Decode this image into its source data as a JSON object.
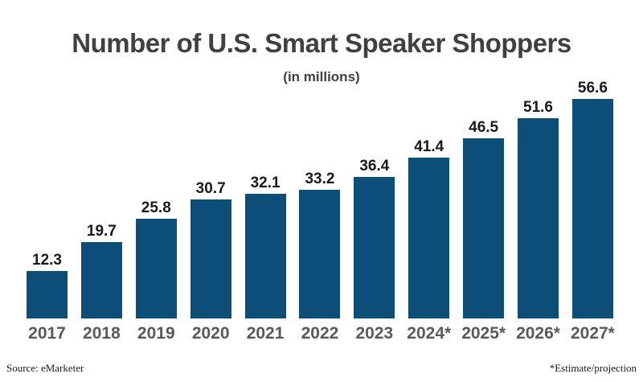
{
  "header": {
    "title": "Number of U.S. Smart Speaker Shoppers",
    "subtitle": "(in millions)"
  },
  "footer": {
    "source": "Source: eMarketer",
    "footnote": "*Estimate/projection"
  },
  "colors": {
    "bar": "#0d4e79",
    "title_text": "#404040",
    "value_label": "#1a1a1a",
    "axis_label": "#595959"
  },
  "chart_data": {
    "type": "bar",
    "title": "Number of U.S. Smart Speaker Shoppers",
    "subtitle": "(in millions)",
    "categories": [
      "2017",
      "2018",
      "2019",
      "2020",
      "2021",
      "2022",
      "2023",
      "2024*",
      "2025*",
      "2026*",
      "2027*"
    ],
    "values": [
      12.3,
      19.7,
      25.8,
      30.7,
      32.1,
      33.2,
      36.4,
      41.4,
      46.5,
      51.6,
      56.6
    ],
    "xlabel": "",
    "ylabel": "",
    "ylim": [
      0,
      60
    ],
    "grid": false,
    "legend": false,
    "data_labels": true,
    "bar_color": "#0d4e79"
  }
}
